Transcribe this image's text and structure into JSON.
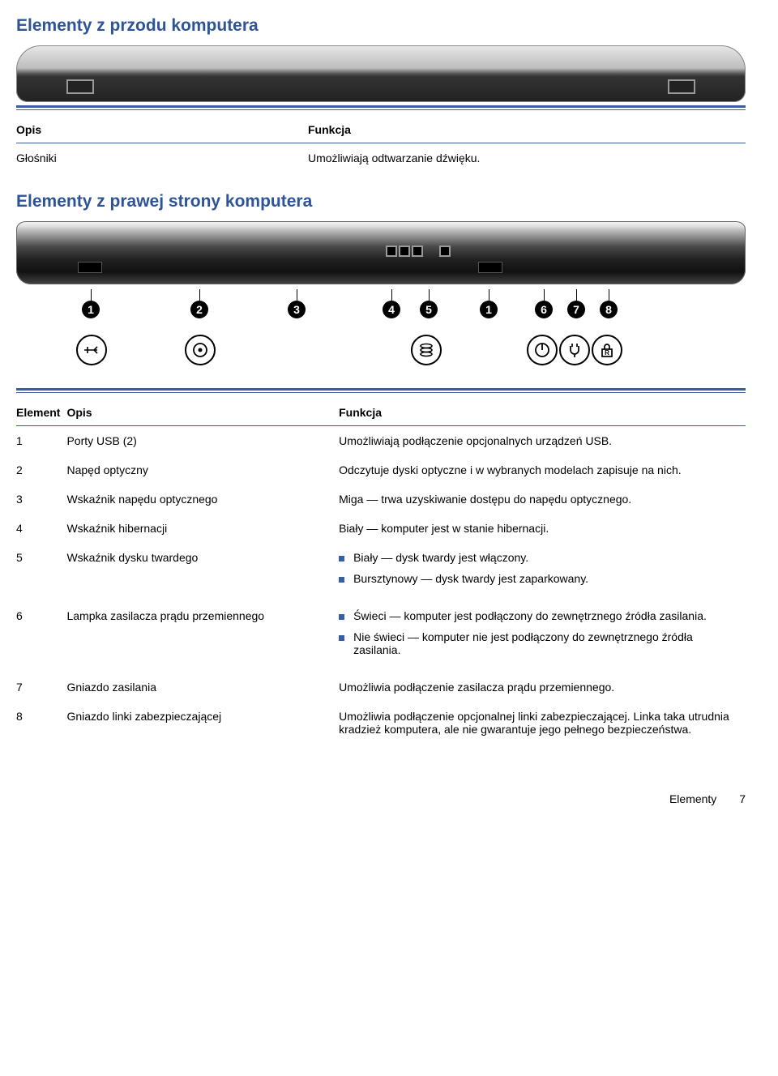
{
  "colors": {
    "heading": "#2f5496",
    "rule": "#3a5fa0",
    "bullet": "#3a5fa0"
  },
  "section1": {
    "title": "Elementy z przodu komputera",
    "table": {
      "headers": {
        "name": "Opis",
        "func": "Funkcja"
      },
      "row": {
        "name": "Głośniki",
        "func": "Umożliwiają odtwarzanie dźwięku."
      }
    }
  },
  "section2": {
    "title": "Elementy z prawej strony komputera",
    "callouts": [
      "1",
      "2",
      "3",
      "4",
      "5",
      "1",
      "6",
      "7",
      "8"
    ],
    "headers": {
      "num": "Element",
      "name": "Opis",
      "func": "Funkcja"
    },
    "rows": [
      {
        "num": "1",
        "name": "Porty USB (2)",
        "func_text": "Umożliwiają podłączenie opcjonalnych urządzeń USB."
      },
      {
        "num": "2",
        "name": "Napęd optyczny",
        "func_text": "Odczytuje dyski optyczne i w wybranych modelach zapisuje na nich."
      },
      {
        "num": "3",
        "name": "Wskaźnik napędu optycznego",
        "func_text": "Miga — trwa uzyskiwanie dostępu do napędu optycznego."
      },
      {
        "num": "4",
        "name": "Wskaźnik hibernacji",
        "func_text": "Biały — komputer jest w stanie hibernacji."
      },
      {
        "num": "5",
        "name": "Wskaźnik dysku twardego",
        "func_bullets": [
          "Biały — dysk twardy jest włączony.",
          "Bursztynowy — dysk twardy jest zaparkowany."
        ]
      },
      {
        "num": "6",
        "name": "Lampka zasilacza prądu przemiennego",
        "func_bullets": [
          "Świeci — komputer jest podłączony do zewnętrznego źródła zasilania.",
          "Nie świeci — komputer nie jest podłączony do zewnętrznego źródła zasilania."
        ]
      },
      {
        "num": "7",
        "name": "Gniazdo zasilania",
        "func_text": "Umożliwia podłączenie zasilacza prądu przemiennego."
      },
      {
        "num": "8",
        "name": "Gniazdo linki zabezpieczającej",
        "func_text": "Umożliwia podłączenie opcjonalnej linki zabezpieczającej. Linka taka utrudnia kradzież komputera, ale nie gwarantuje jego pełnego bezpieczeństwa."
      }
    ]
  },
  "footer": {
    "section": "Elementy",
    "page": "7"
  }
}
